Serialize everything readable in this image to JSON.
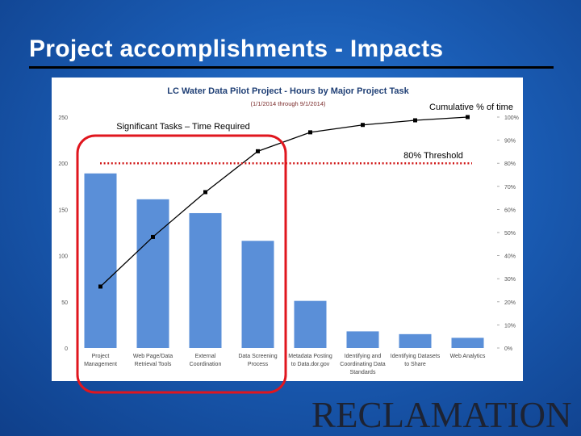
{
  "slide": {
    "title": "Project accomplishments - Impacts",
    "logo_text": "RECLAMATION"
  },
  "annotations": {
    "cumulative_label": "Cumulative % of time",
    "significant_label": "Significant Tasks – Time Required",
    "threshold_label": "80% Threshold",
    "threshold_value": 80
  },
  "colors": {
    "bar": "#5a8fd8",
    "line": "#000000",
    "threshold": "#d11a1a",
    "highlight": "#e0161e",
    "title_text": "#1f3f75"
  },
  "chart_data": {
    "type": "bar",
    "title": "LC Water Data Pilot Project - Hours by Major Project Task",
    "subtitle": "(1/1/2014 through 9/1/2014)",
    "categories": [
      [
        "Project",
        "Management"
      ],
      [
        "Web Page/Data",
        "Retrieval Tools"
      ],
      [
        "External",
        "Coordination"
      ],
      [
        "Data Screening",
        "Process"
      ],
      [
        "Metadata Posting",
        "to Data.dor.gov"
      ],
      [
        "Identifying and",
        "Coordinating Data",
        "Standards"
      ],
      [
        "Identifying Datasets",
        "to Share"
      ],
      [
        "Web Analytics"
      ]
    ],
    "series": [
      {
        "values": [
          189,
          161,
          146,
          116,
          51,
          18,
          15,
          11
        ]
      },
      {
        "axis": "right",
        "values": [
          26.6,
          48.1,
          67.5,
          85.2,
          93.4,
          96.6,
          98.6,
          100
        ]
      }
    ],
    "ylim": [
      0,
      250
    ],
    "y_ticks": [
      "0",
      "50",
      "100",
      "150",
      "200",
      "250"
    ],
    "y_tick_values": [
      0,
      50,
      100,
      150,
      200,
      250
    ],
    "y2lim": [
      0,
      100
    ],
    "y2_ticks": [
      "0%",
      "10%",
      "20%",
      "30%",
      "40%",
      "50%",
      "60%",
      "70%",
      "80%",
      "90%",
      "100%"
    ],
    "y2_tick_values": [
      0,
      10,
      20,
      30,
      40,
      50,
      60,
      70,
      80,
      90,
      100
    ],
    "grid": false,
    "legend": "none"
  }
}
